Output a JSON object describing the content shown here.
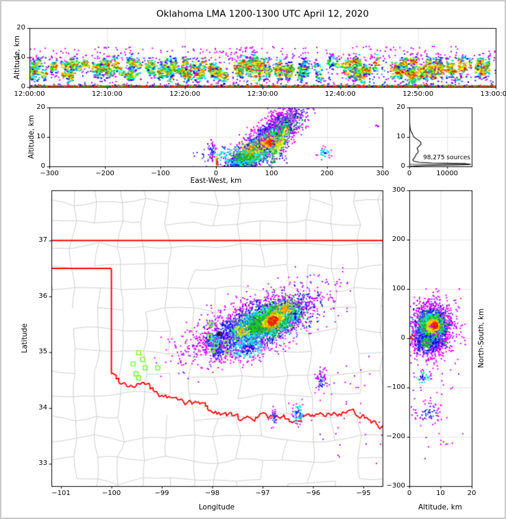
{
  "title": "Oklahoma LMA 1200-1300 UTC April 12, 2020",
  "colors": {
    "background": "#ffffff",
    "frame": "#000000",
    "grid": "#e3e3e3",
    "state_border": "#ff0000",
    "county_lines": "#cccccc",
    "stations": "#7dfc3c",
    "hist_line": "#000000",
    "hist_bar": "#a6a6a6",
    "ground_line": "#ff2200"
  },
  "palette": {
    "fringe": [
      "#ff00ff",
      "#d500ff",
      "#9b00ff"
    ],
    "low": [
      "#2222ff",
      "#0000dd",
      "#4466ff"
    ],
    "midlow": [
      "#00ccff",
      "#00ffff",
      "#33ddaa"
    ],
    "mid": [
      "#00dd00",
      "#33cc33",
      "#2e8b57"
    ],
    "high": [
      "#aaee00",
      "#ffff00",
      "#ddee22"
    ],
    "vhigh": [
      "#ffcc00",
      "#ffaa00",
      "#ff8800"
    ],
    "top": [
      "#ff3300",
      "#ee1100"
    ],
    "core": [
      "#aa0000",
      "#771100"
    ],
    "dark": [
      "#3a1500",
      "#000000"
    ]
  },
  "chart_data": [
    {
      "id": "time-height",
      "type": "scatter-density",
      "ylabel": "Altitude, km",
      "x_range": [
        0,
        3600
      ],
      "y_range": [
        0,
        20
      ],
      "x_ticks": {
        "values": [
          0,
          600,
          1200,
          1800,
          2400,
          3000,
          3600
        ],
        "labels": [
          "12:00:00",
          "12:10:00",
          "12:20:00",
          "12:30:00",
          "12:40:00",
          "12:50:00",
          "13:00:00"
        ]
      },
      "y_ticks": {
        "values": [
          0,
          10,
          20
        ],
        "labels": [
          "0",
          "10",
          "20"
        ]
      },
      "gen": {
        "seed": 11,
        "streaks": 175,
        "streak_pts": [
          6,
          42
        ],
        "alt_center": [
          3.5,
          8.5
        ],
        "alt_spread": [
          1.2,
          3.2
        ],
        "envelope": [
          [
            0,
            0.85
          ],
          [
            500,
            0.9
          ],
          [
            900,
            0.7
          ],
          [
            1300,
            0.95
          ],
          [
            1700,
            1.0
          ],
          [
            2000,
            0.85
          ],
          [
            2150,
            0.5
          ],
          [
            2350,
            0.6
          ],
          [
            2500,
            0.95
          ],
          [
            2900,
            1.0
          ],
          [
            3600,
            0.95
          ]
        ],
        "high_dots": 260,
        "background": 700,
        "ground_pts": 1100,
        "ground_alt": 0.35
      }
    },
    {
      "id": "east-west",
      "type": "scatter-density",
      "ylabel": "Altitude, km",
      "xlabel": "East-West, km",
      "x_range": [
        -300,
        300
      ],
      "y_range": [
        0,
        20
      ],
      "x_ticks": {
        "values": [
          -300,
          -200,
          -100,
          0,
          100,
          200,
          300
        ],
        "labels": [
          "−300",
          "−200",
          "−100",
          "0",
          "100",
          "200",
          "300"
        ]
      },
      "y_ticks": {
        "values": [
          0,
          10,
          20
        ],
        "labels": [
          "0",
          "10",
          "20"
        ]
      },
      "seed": 22,
      "clusters": [
        {
          "cx": 75,
          "cy": 7,
          "sx": 52,
          "sy": 3.6,
          "rot": 10,
          "n": 650,
          "bands": [
            "fringe"
          ]
        },
        {
          "cx": 70,
          "cy": 6,
          "sx": 40,
          "sy": 2.9,
          "rot": 10,
          "n": 950,
          "bands": [
            "low",
            "low",
            "fringe"
          ]
        },
        {
          "cx": 80,
          "cy": 6.5,
          "sx": 33,
          "sy": 2.4,
          "rot": 8,
          "n": 900,
          "bands": [
            "mid",
            "midlow",
            "low"
          ]
        },
        {
          "cx": 88,
          "cy": 7.2,
          "sx": 26,
          "sy": 2.0,
          "rot": 8,
          "n": 520,
          "bands": [
            "high",
            "mid",
            "mid"
          ]
        },
        {
          "cx": 97,
          "cy": 8,
          "sx": 10,
          "sy": 1.2,
          "rot": 0,
          "n": 170,
          "bands": [
            "top",
            "vhigh",
            "high"
          ]
        },
        {
          "cx": 60,
          "cy": 5.5,
          "sx": 9,
          "sy": 1.4,
          "rot": 0,
          "n": 110,
          "bands": [
            "vhigh",
            "high"
          ]
        },
        {
          "cx": 45,
          "cy": 3.2,
          "sx": 33,
          "sy": 1.7,
          "rot": 0,
          "n": 260,
          "bands": [
            "mid",
            "midlow",
            "low"
          ]
        },
        {
          "cx": 120,
          "cy": 9.5,
          "sx": 14,
          "sy": 2.4,
          "rot": 20,
          "n": 170,
          "bands": [
            "high",
            "mid",
            "low"
          ]
        },
        {
          "cx": 105,
          "cy": 13,
          "sx": 18,
          "sy": 2.4,
          "rot": 10,
          "n": 110,
          "bands": [
            "fringe"
          ]
        },
        {
          "cx": 150,
          "cy": 13.5,
          "sx": 22,
          "sy": 1.8,
          "rot": 15,
          "n": 60,
          "bands": [
            "fringe"
          ]
        },
        {
          "cx": 195,
          "cy": 4.6,
          "sx": 6,
          "sy": 0.9,
          "rot": 0,
          "n": 40,
          "bands": [
            "low",
            "midlow",
            "fringe"
          ]
        },
        {
          "cx": 290,
          "cy": 14,
          "sx": 3,
          "sy": 0.6,
          "rot": 0,
          "n": 5,
          "bands": [
            "fringe"
          ]
        },
        {
          "cx": -8,
          "cy": 5.6,
          "sx": 4,
          "sy": 1.5,
          "rot": 0,
          "n": 45,
          "bands": [
            "low",
            "fringe"
          ]
        },
        {
          "cx": 2,
          "cy": 1.3,
          "sx": 1.6,
          "sy": 0.9,
          "rot": 0,
          "n": 22,
          "bands": [
            "top",
            "vhigh"
          ]
        }
      ]
    },
    {
      "id": "altitude-histogram",
      "type": "line",
      "annotation": "98,275 sources",
      "x_range": [
        0,
        16500
      ],
      "y_range": [
        0,
        20
      ],
      "x_ticks": {
        "values": [
          0,
          10000
        ],
        "labels": [
          "0",
          "10000"
        ]
      },
      "y_ticks": {
        "values": [
          0,
          10,
          20
        ],
        "labels": [
          "0",
          "10",
          "20"
        ]
      },
      "bar": {
        "alt": [
          0.45,
          0.95
        ],
        "count": 16300
      },
      "curve": [
        [
          0,
          250
        ],
        [
          0.3,
          4000
        ],
        [
          0.55,
          14000
        ],
        [
          0.7,
          16200
        ],
        [
          0.95,
          14500
        ],
        [
          1.15,
          6000
        ],
        [
          1.4,
          2600
        ],
        [
          1.8,
          1100
        ],
        [
          2.2,
          900
        ],
        [
          3,
          1400
        ],
        [
          4,
          1800
        ],
        [
          5,
          2400
        ],
        [
          5.6,
          2250
        ],
        [
          6.2,
          2050
        ],
        [
          7,
          2700
        ],
        [
          7.6,
          3100
        ],
        [
          8.2,
          3000
        ],
        [
          8.8,
          2500
        ],
        [
          9.4,
          1800
        ],
        [
          10,
          1150
        ],
        [
          10.6,
          950
        ],
        [
          11.2,
          780
        ],
        [
          12,
          380
        ],
        [
          13,
          210
        ],
        [
          14,
          130
        ],
        [
          15,
          85
        ],
        [
          16,
          45
        ],
        [
          17,
          22
        ],
        [
          18,
          8
        ],
        [
          19,
          2
        ],
        [
          20,
          0
        ]
      ]
    },
    {
      "id": "plan-view-map",
      "type": "scatter-density",
      "xlabel": "Longitude",
      "ylabel": "Latitude",
      "x_range": [
        -101.19,
        -94.62
      ],
      "y_range": [
        32.6,
        37.9
      ],
      "x_ticks": {
        "values": [
          -101,
          -100,
          -99,
          -98,
          -97,
          -96,
          -95
        ],
        "labels": [
          "−101",
          "−100",
          "−99",
          "−98",
          "−97",
          "−96",
          "−95"
        ]
      },
      "y_ticks": {
        "values": [
          33,
          34,
          35,
          36,
          37
        ],
        "labels": [
          "33",
          "34",
          "35",
          "36",
          "37"
        ]
      },
      "seed": 33,
      "county_seed": 7,
      "state_border": [
        {
          "pts": [
            [
              -101.19,
              37
            ],
            [
              -94.62,
              37
            ]
          ],
          "wiggle": false
        },
        {
          "pts": [
            [
              -101.19,
              36.5
            ],
            [
              -100.0,
              36.5
            ]
          ],
          "wiggle": false
        },
        {
          "pts": [
            [
              -100.0,
              36.5
            ],
            [
              -100.0,
              34.63
            ]
          ],
          "wiggle": false
        },
        {
          "pts": [
            [
              -100.0,
              34.63
            ],
            [
              -99.75,
              34.44
            ],
            [
              -99.58,
              34.4
            ],
            [
              -99.4,
              34.45
            ],
            [
              -99.22,
              34.36
            ],
            [
              -99.0,
              34.21
            ],
            [
              -98.65,
              34.14
            ],
            [
              -98.4,
              34.09
            ],
            [
              -98.15,
              34.07
            ],
            [
              -97.97,
              33.92
            ],
            [
              -97.7,
              33.9
            ],
            [
              -97.48,
              33.83
            ],
            [
              -97.2,
              33.82
            ],
            [
              -96.95,
              33.87
            ],
            [
              -96.72,
              33.82
            ],
            [
              -96.58,
              33.88
            ],
            [
              -96.38,
              33.72
            ],
            [
              -96.18,
              33.85
            ],
            [
              -95.88,
              33.85
            ],
            [
              -95.58,
              33.89
            ],
            [
              -95.28,
              33.92
            ],
            [
              -95.02,
              33.87
            ],
            [
              -94.8,
              33.75
            ],
            [
              -94.62,
              33.68
            ]
          ],
          "wiggle": true
        }
      ],
      "stations": [
        [
          -99.46,
          34.99
        ],
        [
          -99.38,
          34.87
        ],
        [
          -99.57,
          34.79
        ],
        [
          -99.33,
          34.72
        ],
        [
          -99.08,
          34.72
        ],
        [
          -99.51,
          34.61
        ],
        [
          -99.46,
          34.54
        ],
        [
          -98.02,
          35.5
        ],
        [
          -98.05,
          35.28
        ],
        [
          -97.92,
          35.12
        ],
        [
          -97.73,
          35.18
        ],
        [
          -97.99,
          35.04
        ],
        [
          -97.7,
          34.99
        ]
      ],
      "clusters": [
        {
          "cx": -97.2,
          "cy": 35.5,
          "sx": 0.78,
          "sy": 0.26,
          "rot": 20,
          "n": 650,
          "bands": [
            "fringe"
          ]
        },
        {
          "cx": -97.15,
          "cy": 35.48,
          "sx": 0.62,
          "sy": 0.2,
          "rot": 20,
          "n": 1400,
          "bands": [
            "low",
            "low",
            "fringe"
          ]
        },
        {
          "cx": -96.95,
          "cy": 35.52,
          "sx": 0.45,
          "sy": 0.17,
          "rot": 20,
          "n": 1300,
          "bands": [
            "mid",
            "midlow",
            "low"
          ]
        },
        {
          "cx": -96.8,
          "cy": 35.57,
          "sx": 0.3,
          "sy": 0.13,
          "rot": 20,
          "n": 700,
          "bands": [
            "high",
            "mid",
            "mid"
          ]
        },
        {
          "cx": -96.8,
          "cy": 35.56,
          "sx": 0.09,
          "sy": 0.07,
          "rot": 30,
          "n": 170,
          "bands": [
            "top",
            "vhigh"
          ]
        },
        {
          "cx": -96.55,
          "cy": 35.78,
          "sx": 0.09,
          "sy": 0.06,
          "rot": 20,
          "n": 80,
          "bands": [
            "vhigh",
            "high"
          ]
        },
        {
          "cx": -97.4,
          "cy": 35.38,
          "sx": 0.1,
          "sy": 0.07,
          "rot": 0,
          "n": 90,
          "bands": [
            "vhigh",
            "high",
            "mid"
          ]
        },
        {
          "cx": -97.95,
          "cy": 35.22,
          "sx": 0.12,
          "sy": 0.1,
          "rot": 0,
          "n": 150,
          "bands": [
            "midlow",
            "low",
            "fringe"
          ]
        },
        {
          "cx": -97.9,
          "cy": 35.02,
          "sx": 0.08,
          "sy": 0.1,
          "rot": 0,
          "n": 90,
          "bands": [
            "low",
            "low",
            "fringe"
          ]
        },
        {
          "cx": -97.3,
          "cy": 35.05,
          "sx": 0.2,
          "sy": 0.1,
          "rot": 10,
          "n": 200,
          "bands": [
            "low",
            "midlow",
            "fringe"
          ]
        },
        {
          "cx": -97.87,
          "cy": 35.32,
          "sx": 0.025,
          "sy": 0.02,
          "rot": 0,
          "n": 12,
          "bands": [
            "dark"
          ]
        },
        {
          "cx": -96.36,
          "cy": 35.66,
          "sx": 0.04,
          "sy": 0.09,
          "rot": 0,
          "n": 55,
          "bands": [
            "low",
            "midlow",
            "fringe"
          ]
        },
        {
          "cx": -95.83,
          "cy": 34.45,
          "sx": 0.05,
          "sy": 0.12,
          "rot": 0,
          "n": 60,
          "bands": [
            "low",
            "fringe"
          ]
        },
        {
          "cx": -96.3,
          "cy": 33.9,
          "sx": 0.06,
          "sy": 0.1,
          "rot": 0,
          "n": 70,
          "bands": [
            "low",
            "midlow",
            "fringe"
          ]
        },
        {
          "cx": -96.78,
          "cy": 33.82,
          "sx": 0.04,
          "sy": 0.08,
          "rot": 0,
          "n": 35,
          "bands": [
            "low",
            "fringe"
          ]
        },
        {
          "cx": -95.4,
          "cy": 34.35,
          "sx": 0.25,
          "sy": 0.3,
          "rot": 0,
          "n": 18,
          "bands": [
            "fringe"
          ]
        },
        {
          "cx": -95.3,
          "cy": 33.7,
          "sx": 0.5,
          "sy": 0.35,
          "rot": 0,
          "n": 22,
          "bands": [
            "fringe"
          ]
        }
      ]
    },
    {
      "id": "north-south",
      "type": "scatter-density",
      "xlabel": "Altitude, km",
      "ylabel_right": "North-South, km",
      "x_range": [
        0,
        20
      ],
      "y_range": [
        -300,
        300
      ],
      "x_ticks": {
        "values": [
          0,
          10,
          20
        ],
        "labels": [
          "0",
          "10",
          "20"
        ]
      },
      "y_ticks": {
        "values": [
          300,
          200,
          100,
          0,
          -100,
          -200,
          -300
        ],
        "labels": [
          "300",
          "200",
          "100",
          "0",
          "−100",
          "−200",
          "−300"
        ]
      },
      "seed": 44,
      "clusters": [
        {
          "cx": 7,
          "cy": 22,
          "sx": 4.2,
          "sy": 30,
          "rot": 0,
          "n": 500,
          "bands": [
            "fringe"
          ]
        },
        {
          "cx": 6.8,
          "cy": 20,
          "sx": 3.2,
          "sy": 25,
          "rot": 0,
          "n": 800,
          "bands": [
            "low",
            "low",
            "fringe"
          ]
        },
        {
          "cx": 7.2,
          "cy": 22,
          "sx": 2.4,
          "sy": 18,
          "rot": 0,
          "n": 700,
          "bands": [
            "mid",
            "midlow",
            "low"
          ]
        },
        {
          "cx": 7.6,
          "cy": 24,
          "sx": 1.8,
          "sy": 13,
          "rot": 0,
          "n": 420,
          "bands": [
            "high",
            "mid"
          ]
        },
        {
          "cx": 8,
          "cy": 26,
          "sx": 1.0,
          "sy": 6.5,
          "rot": 0,
          "n": 150,
          "bands": [
            "top",
            "vhigh"
          ]
        },
        {
          "cx": 5.5,
          "cy": -10,
          "sx": 2.3,
          "sy": 13,
          "rot": 0,
          "n": 260,
          "bands": [
            "mid",
            "low",
            "fringe"
          ]
        },
        {
          "cx": 0.6,
          "cy": 1,
          "sx": 0.5,
          "sy": 2.5,
          "rot": 0,
          "n": 8,
          "bands": [
            "top",
            "core"
          ]
        },
        {
          "cx": 4.5,
          "cy": -80,
          "sx": 1.4,
          "sy": 8,
          "rot": 0,
          "n": 50,
          "bands": [
            "low",
            "midlow",
            "fringe"
          ]
        },
        {
          "cx": 6,
          "cy": -152,
          "sx": 2.4,
          "sy": 12,
          "rot": 0,
          "n": 70,
          "bands": [
            "low",
            "fringe"
          ]
        },
        {
          "cx": 12,
          "cy": -215,
          "sx": 1,
          "sy": 4,
          "rot": 0,
          "n": 6,
          "bands": [
            "fringe"
          ]
        },
        {
          "cx": 8,
          "cy": -130,
          "sx": 4,
          "sy": 55,
          "rot": 0,
          "n": 28,
          "bands": [
            "fringe"
          ]
        }
      ]
    }
  ]
}
